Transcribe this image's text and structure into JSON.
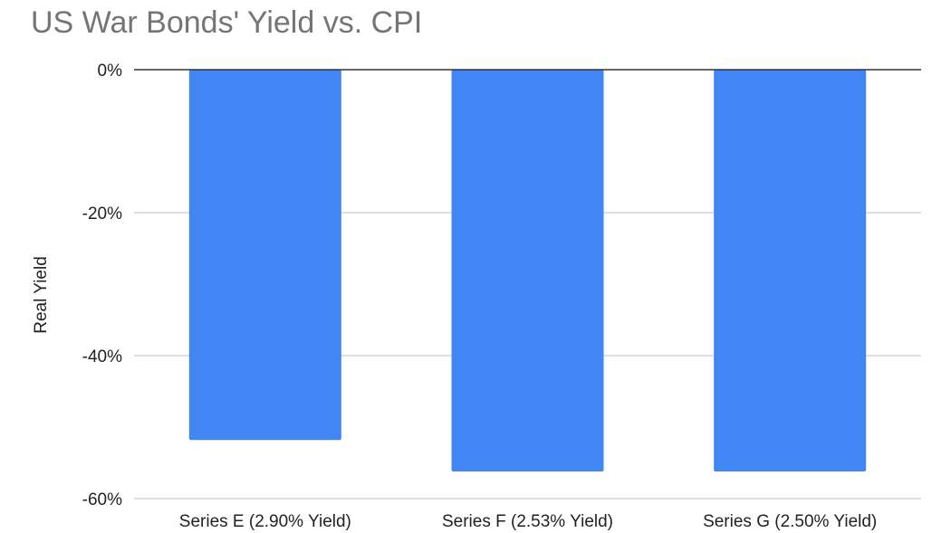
{
  "chart_data": {
    "type": "bar",
    "title": "US War Bonds' Yield vs. CPI",
    "xlabel": "",
    "ylabel": "Real Yield",
    "categories": [
      "Series E (2.90% Yield)",
      "Series F (2.53% Yield)",
      "Series G (2.50% Yield)"
    ],
    "series": [
      {
        "values": [
          -51.8,
          -56.2,
          -56.2
        ],
        "color": "#4285f4"
      }
    ],
    "ylim": [
      -60,
      0
    ],
    "yticks": [
      0,
      -20,
      -40,
      -60
    ],
    "ytick_labels": [
      "0%",
      "-20%",
      "-40%",
      "-60%"
    ],
    "grid": true,
    "legend": "none"
  }
}
